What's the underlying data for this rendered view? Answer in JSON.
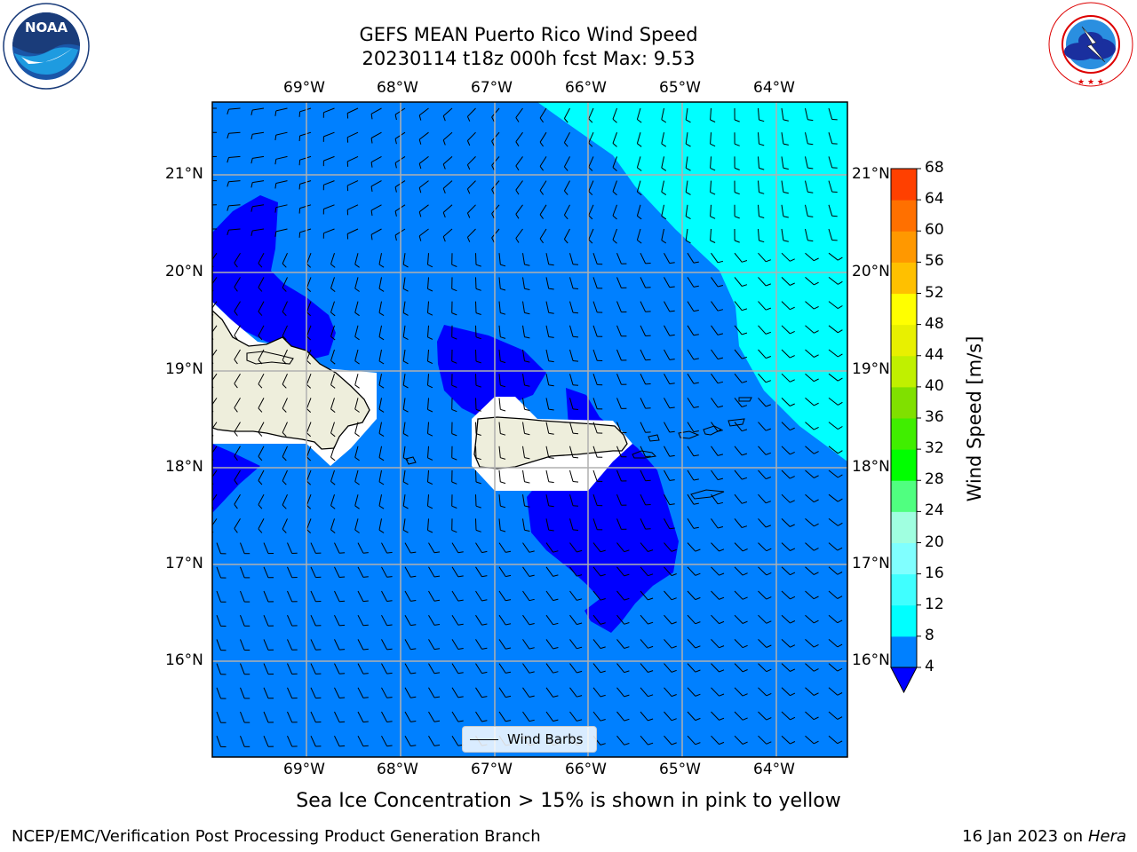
{
  "header": {
    "title_line1": "GEFS MEAN Puerto Rico Wind Speed",
    "title_line2": "20230114 t18z 000h fcst   Max: 9.53"
  },
  "logos": {
    "noaa": {
      "name": "NOAA",
      "ring_text": "NATIONAL OCEANIC AND ATMOSPHERIC ADMINISTRATION",
      "bottom_text": "U.S. DEPARTMENT OF COMMERCE"
    },
    "nws": {
      "ring_text": "NATIONAL WEATHER SERVICE"
    }
  },
  "map": {
    "lon_labels": [
      "69°W",
      "68°W",
      "67°W",
      "66°W",
      "65°W",
      "64°W"
    ],
    "lat_labels": [
      "21°N",
      "20°N",
      "19°N",
      "18°N",
      "17°N",
      "16°N"
    ],
    "legend_label": "Wind Barbs",
    "colors": {
      "ocean_4_8": "#0080ff",
      "ocean_0_4": "#0000ff",
      "ocean_8_12": "#00ffff",
      "land": "#eeeedc",
      "grid": "#b0b0b0"
    }
  },
  "colorbar": {
    "title": "Wind Speed [m/s]",
    "ticks": [
      "4",
      "8",
      "12",
      "16",
      "20",
      "24",
      "28",
      "32",
      "36",
      "40",
      "44",
      "48",
      "52",
      "56",
      "60",
      "64",
      "68"
    ],
    "colors": [
      "#0080ff",
      "#00ffff",
      "#40ffff",
      "#80ffff",
      "#a0ffe0",
      "#50ff80",
      "#00ff00",
      "#40ee00",
      "#80e000",
      "#c0f000",
      "#e8f000",
      "#ffff00",
      "#ffc000",
      "#ff9800",
      "#ff7000",
      "#ff4000",
      "#ff1e00",
      "#ff0000"
    ],
    "under_color": "#0000ff"
  },
  "subtitle": "Sea Ice Concentration > 15% is shown in pink to yellow",
  "footer": {
    "left": "NCEP/EMC/Verification Post Processing Product Generation Branch",
    "right_date": "16 Jan 2023 on",
    "right_host": "Hera"
  }
}
